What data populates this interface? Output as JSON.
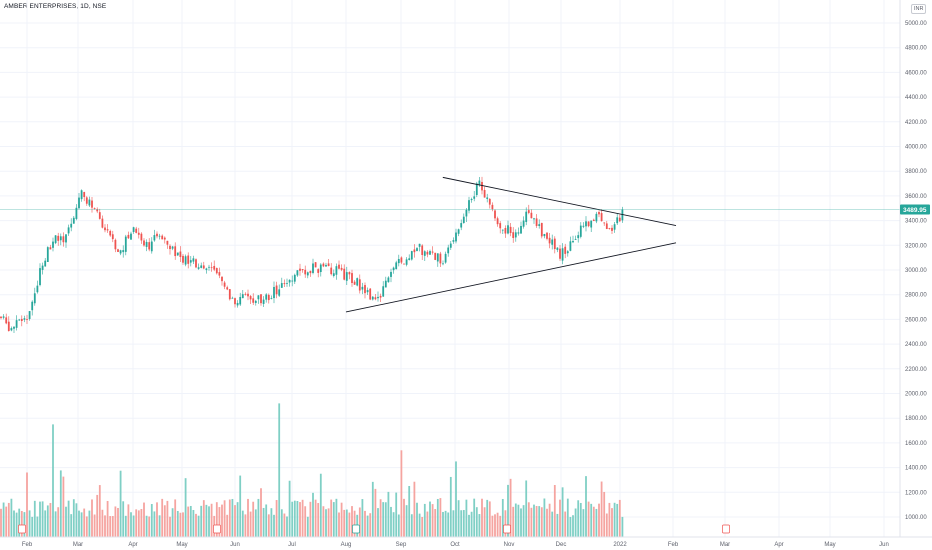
{
  "header": {
    "symbol_title": "AMBER ENTERPRISES, 1D, NSE",
    "currency": "INR"
  },
  "colors": {
    "up": "#26a69a",
    "down": "#ef5350",
    "up_volume": "#7fcfc5",
    "down_volume": "#f5a4a0",
    "grid": "#f0f3fa",
    "last_price_line": "#26a69a",
    "trendline": "#131722"
  },
  "chart_data": {
    "type": "candlestick",
    "title": "AMBER ENTERPRISES, 1D, NSE",
    "x_tick_labels": [
      "Feb",
      "Mar",
      "Apr",
      "May",
      "Jun",
      "Jul",
      "Aug",
      "Sep",
      "Oct",
      "Nov",
      "Dec",
      "2022",
      "Feb",
      "Mar",
      "Apr",
      "May",
      "Jun"
    ],
    "y_tick_labels": [
      "5000.00",
      "4800.00",
      "4600.00",
      "4400.00",
      "4200.00",
      "4000.00",
      "3800.00",
      "3600.00",
      "3400.00",
      "3200.00",
      "3000.00",
      "2800.00",
      "2600.00",
      "2400.00",
      "2200.00",
      "2000.00",
      "1800.00",
      "1600.00",
      "1400.00",
      "1200.00",
      "1000.00"
    ],
    "price_axis_range": [
      2200,
      5000
    ],
    "grid": true,
    "last_price": "3489.95",
    "price_path": [
      {
        "x": "Jan 20",
        "y": 2620
      },
      {
        "x": "Jan 27",
        "y": 2520
      },
      {
        "x": "Feb 03",
        "y": 2660
      },
      {
        "x": "Feb 10",
        "y": 3060
      },
      {
        "x": "Feb 17",
        "y": 3250
      },
      {
        "x": "Feb 24",
        "y": 3230
      },
      {
        "x": "Mar 03",
        "y": 3640
      },
      {
        "x": "Mar 10",
        "y": 3480
      },
      {
        "x": "Mar 17",
        "y": 3300
      },
      {
        "x": "Mar 24",
        "y": 3120
      },
      {
        "x": "Apr 01",
        "y": 3350
      },
      {
        "x": "Apr 10",
        "y": 3200
      },
      {
        "x": "Apr 20",
        "y": 3290
      },
      {
        "x": "May 01",
        "y": 3080
      },
      {
        "x": "May 10",
        "y": 3040
      },
      {
        "x": "May 20",
        "y": 2990
      },
      {
        "x": "May 30",
        "y": 2760
      },
      {
        "x": "Jun 10",
        "y": 2770
      },
      {
        "x": "Jun 20",
        "y": 2780
      },
      {
        "x": "Jun 28",
        "y": 2920
      },
      {
        "x": "Jul 10",
        "y": 3020
      },
      {
        "x": "Jul 25",
        "y": 3000
      },
      {
        "x": "Aug 05",
        "y": 2920
      },
      {
        "x": "Aug 18",
        "y": 2760
      },
      {
        "x": "Aug 30",
        "y": 3050
      },
      {
        "x": "Sep 10",
        "y": 3180
      },
      {
        "x": "Sep 25",
        "y": 3090
      },
      {
        "x": "Oct 05",
        "y": 3420
      },
      {
        "x": "Oct 15",
        "y": 3720
      },
      {
        "x": "Oct 25",
        "y": 3380
      },
      {
        "x": "Nov 05",
        "y": 3280
      },
      {
        "x": "Nov 12",
        "y": 3520
      },
      {
        "x": "Nov 20",
        "y": 3320
      },
      {
        "x": "Dec 01",
        "y": 3120
      },
      {
        "x": "Dec 10",
        "y": 3300
      },
      {
        "x": "Dec 20",
        "y": 3450
      },
      {
        "x": "Dec 28",
        "y": 3330
      },
      {
        "x": "Jan 03",
        "y": 3489.95
      }
    ],
    "trendlines": [
      {
        "name": "upper",
        "from": {
          "x": "Sep 25",
          "y": 3750
        },
        "to": {
          "x": "Jan 20",
          "y": 3360
        }
      },
      {
        "name": "lower",
        "from": {
          "x": "Aug 01",
          "y": 2660
        },
        "to": {
          "x": "Jan 20",
          "y": 3220
        }
      }
    ],
    "volume": {
      "unit_note": "volume bars drawn on same axis scale",
      "spikes": [
        {
          "x": "Feb 17",
          "y": 1750
        },
        {
          "x": "Jun 25",
          "y": 1920
        },
        {
          "x": "Sep 01",
          "y": 1540
        },
        {
          "x": "Oct 01",
          "y": 1450
        },
        {
          "x": "Nov 01",
          "y": 1260
        }
      ]
    }
  }
}
